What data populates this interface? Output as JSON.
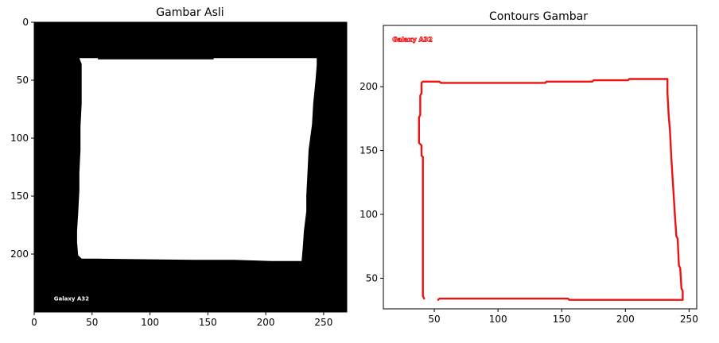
{
  "chart_data": [
    {
      "type": "image",
      "title": "Gambar Asli",
      "xlim": [
        0,
        270
      ],
      "ylim": [
        250,
        0
      ],
      "xticks": [
        0,
        50,
        100,
        150,
        200,
        250
      ],
      "yticks": [
        0,
        50,
        100,
        150,
        200
      ],
      "background_color": "#000000",
      "shape_color": "#ffffff",
      "shape_polygon": [
        [
          39,
          31
        ],
        [
          55,
          31
        ],
        [
          55,
          32
        ],
        [
          155,
          32
        ],
        [
          155,
          31
        ],
        [
          244,
          31
        ],
        [
          244,
          37
        ],
        [
          243,
          50
        ],
        [
          241,
          70
        ],
        [
          240,
          88
        ],
        [
          237,
          110
        ],
        [
          236,
          131
        ],
        [
          235,
          150
        ],
        [
          235,
          163
        ],
        [
          233,
          180
        ],
        [
          232,
          194
        ],
        [
          231,
          206
        ],
        [
          205,
          206
        ],
        [
          173,
          205
        ],
        [
          138,
          205
        ],
        [
          55,
          204
        ],
        [
          41,
          204
        ],
        [
          38,
          201
        ],
        [
          37,
          190
        ],
        [
          37,
          180
        ],
        [
          38,
          165
        ],
        [
          39,
          145
        ],
        [
          39,
          130
        ],
        [
          40,
          110
        ],
        [
          40,
          90
        ],
        [
          41,
          70
        ],
        [
          41,
          50
        ],
        [
          41,
          36
        ]
      ],
      "watermark": "Galaxy A32",
      "watermark_pos": [
        17,
        238
      ]
    },
    {
      "type": "line",
      "title": "Contours Gambar",
      "xlim": [
        10,
        256
      ],
      "ylim": [
        26,
        248
      ],
      "xticks": [
        50,
        100,
        150,
        200,
        250
      ],
      "yticks": [
        50,
        100,
        150,
        200
      ],
      "grid": false,
      "series": [
        {
          "color": "#ee1111",
          "x": [
            53,
            54,
            155,
            156,
            245,
            245,
            244,
            243,
            242,
            241,
            240,
            239,
            238,
            237,
            236,
            235,
            234,
            233,
            233,
            203,
            202,
            175,
            174,
            138,
            137,
            55,
            54,
            44,
            41,
            40,
            40,
            39,
            39,
            38,
            38,
            40,
            40,
            41,
            41,
            42
          ],
          "y": [
            33,
            34,
            34,
            33,
            33,
            40,
            42,
            58,
            60,
            81,
            83,
            97,
            113,
            129,
            145,
            165,
            177,
            195,
            206,
            206,
            205,
            205,
            204,
            204,
            203,
            203,
            204,
            204,
            204,
            203,
            195,
            193,
            178,
            176,
            156,
            154,
            146,
            145,
            36,
            34
          ]
        }
      ],
      "watermark": "Galaxy A32",
      "watermark_pos": [
        17,
        237
      ]
    }
  ]
}
